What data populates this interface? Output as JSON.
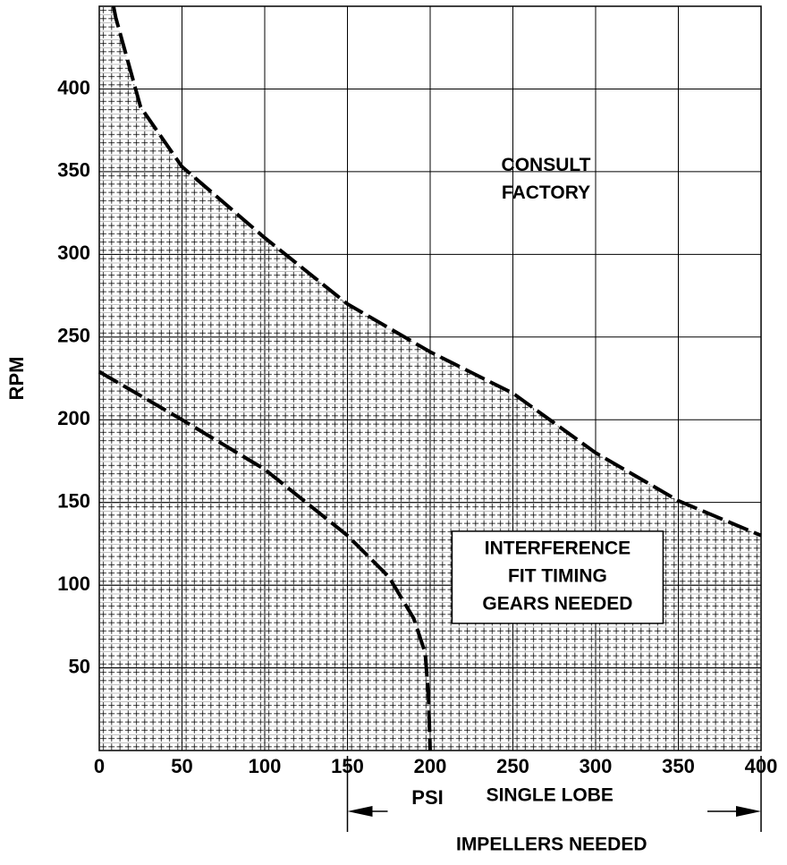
{
  "chart_data": {
    "type": "line",
    "x_label": "PSI",
    "y_label": "RPM",
    "series": [
      {
        "name": null,
        "color": "#000000",
        "x": [
          8.6,
          10,
          25,
          50,
          100,
          150,
          200,
          250,
          300,
          350,
          400
        ],
        "values": [
          450,
          443,
          389,
          353,
          310,
          270,
          241,
          216,
          180,
          151,
          130
        ]
      },
      {
        "name": null,
        "color": "#000000",
        "x": [
          0,
          50,
          100,
          150,
          175,
          190,
          197,
          199,
          200
        ],
        "values": [
          229,
          200,
          170,
          130,
          105,
          80,
          59,
          32,
          0
        ]
      }
    ],
    "xlim": [
      0,
      400
    ],
    "ylim": [
      0,
      450
    ],
    "xticks": [
      0,
      50,
      100,
      150,
      200,
      250,
      300,
      350,
      400
    ],
    "yticks": [
      50,
      100,
      150,
      200,
      250,
      300,
      350,
      400
    ],
    "grid": true,
    "line_style": "dashed",
    "annotations": [
      {
        "lines": [
          "CONSULT",
          "FACTORY"
        ],
        "x": 270,
        "y": 345
      },
      {
        "lines": [
          "INTERFERENCE",
          "FIT TIMING",
          "GEARS NEEDED"
        ],
        "x": 277,
        "y": 105,
        "boxed": true
      },
      {
        "lines": [
          "SINGLE LOBE",
          "IMPELLERS NEEDED"
        ],
        "span": [
          150,
          400
        ]
      }
    ]
  }
}
